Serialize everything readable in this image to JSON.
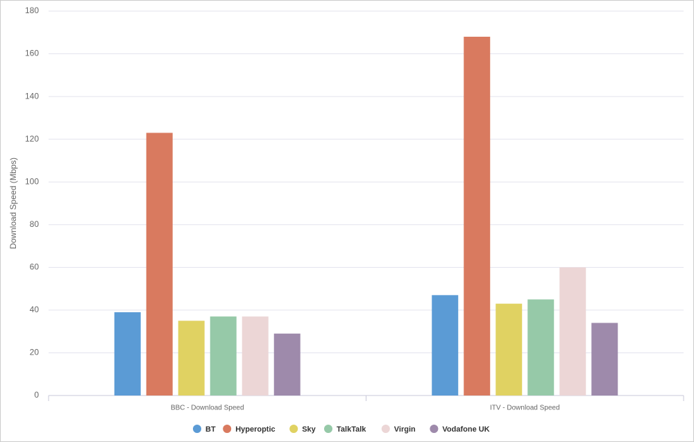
{
  "chart_data": {
    "type": "bar",
    "y_label": "Download Speed (Mbps)",
    "categories": [
      "BBC - Download Speed",
      "ITV - Download Speed"
    ],
    "series": [
      {
        "name": "BT",
        "color": "#5b9bd5",
        "values": [
          39,
          47
        ]
      },
      {
        "name": "Hyperoptic",
        "color": "#d97a5f",
        "values": [
          123,
          168
        ]
      },
      {
        "name": "Sky",
        "color": "#e0d262",
        "values": [
          35,
          43
        ]
      },
      {
        "name": "TalkTalk",
        "color": "#96c9a8",
        "values": [
          37,
          45
        ]
      },
      {
        "name": "Virgin",
        "color": "#ecd6d6",
        "values": [
          37,
          60
        ]
      },
      {
        "name": "Vodafone UK",
        "color": "#9e8aab",
        "values": [
          29,
          34
        ]
      }
    ],
    "ylim": [
      0,
      180
    ],
    "yticks": [
      0,
      20,
      40,
      60,
      80,
      100,
      120,
      140,
      160,
      180
    ],
    "grid": true
  }
}
